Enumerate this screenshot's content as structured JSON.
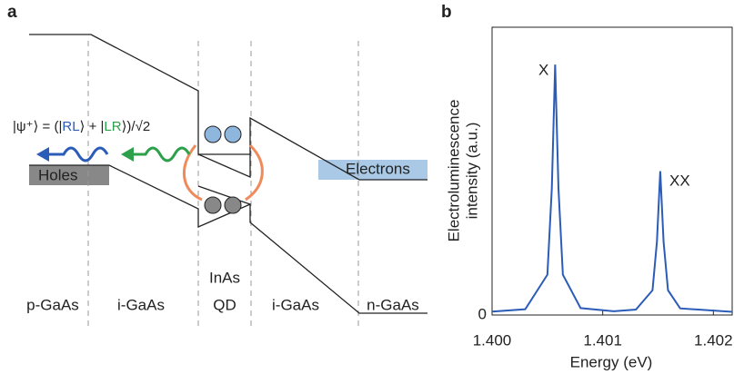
{
  "panel_a": {
    "label": "a",
    "formula": [
      "|ψ⁺⟩ = (|",
      "RL",
      "⟩ + |",
      "LR",
      "⟩)/√2"
    ],
    "holes": "Holes",
    "electrons": "Electrons",
    "regions": [
      [
        "p-GaAs"
      ],
      [
        "i-GaAs"
      ],
      [
        "InAs",
        "QD"
      ],
      [
        "i-GaAs"
      ],
      [
        "n-GaAs"
      ]
    ]
  },
  "chart_data": {
    "type": "line",
    "label": "b",
    "xlabel": "Energy (eV)",
    "ylabel": [
      "Electroluminescence",
      "intensity (a.u.)"
    ],
    "annotations": [
      "X",
      "XX"
    ],
    "color": "#2b5cb8",
    "x": [
      1.4,
      1.4003,
      1.4005,
      1.40054,
      1.40057,
      1.4006,
      1.40064,
      1.4008,
      1.4011,
      1.4013,
      1.40145,
      1.40149,
      1.40152,
      1.40155,
      1.40159,
      1.4017,
      1.40217
    ],
    "values": [
      0.012,
      0.02,
      0.14,
      0.44,
      0.87,
      0.44,
      0.14,
      0.024,
      0.013,
      0.019,
      0.086,
      0.255,
      0.5,
      0.255,
      0.086,
      0.023,
      0.011
    ],
    "xlim": [
      1.4,
      1.40217
    ],
    "ylim": [
      0,
      1
    ],
    "xticks": [
      {
        "value": 1.4,
        "label": "1.400"
      },
      {
        "value": 1.401,
        "label": "1.401"
      },
      {
        "value": 1.402,
        "label": "1.402"
      }
    ],
    "yticks": [
      0
    ]
  }
}
